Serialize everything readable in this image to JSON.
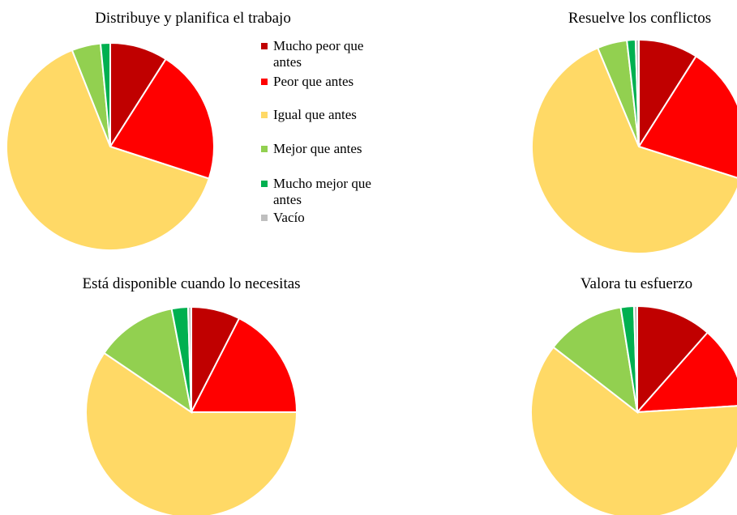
{
  "legend": [
    {
      "label": "Mucho peor que antes",
      "color": "#C00000"
    },
    {
      "label": "Peor que antes",
      "color": "#FF0000"
    },
    {
      "label": "Igual que antes",
      "color": "#FFD966"
    },
    {
      "label": "Mejor que antes",
      "color": "#92D050"
    },
    {
      "label": "Mucho mejor que antes",
      "color": "#00B050"
    },
    {
      "label": "Vacío",
      "color": "#BFBFBF"
    }
  ],
  "chart_data": [
    {
      "type": "pie",
      "title": "Distribuye y planifica el trabajo",
      "categories": [
        "Mucho peor que antes",
        "Peor que antes",
        "Igual que antes",
        "Mejor que antes",
        "Mucho mejor que antes",
        "Vacío"
      ],
      "values": [
        9,
        21,
        64,
        4.5,
        1.5,
        0
      ]
    },
    {
      "type": "pie",
      "title": "Resuelve los conflictos",
      "categories": [
        "Mucho peor que antes",
        "Peor que antes",
        "Igual que antes",
        "Mejor que antes",
        "Mucho mejor que antes",
        "Vacío"
      ],
      "values": [
        9,
        21,
        64,
        4.5,
        1.3,
        0.5
      ]
    },
    {
      "type": "pie",
      "title": "Está disponible cuando lo necesitas",
      "categories": [
        "Mucho peor que antes",
        "Peor que antes",
        "Igual que antes",
        "Mejor que antes",
        "Mucho mejor que antes",
        "Vacío"
      ],
      "values": [
        7.5,
        17.5,
        59.5,
        12.5,
        2.5,
        0.5
      ]
    },
    {
      "type": "pie",
      "title": "Valora tu esfuerzo",
      "categories": [
        "Mucho peor que antes",
        "Peor que antes",
        "Igual que antes",
        "Mejor que antes",
        "Mucho mejor que antes",
        "Vacío"
      ],
      "values": [
        11.5,
        12.5,
        61.5,
        12,
        2,
        0.5
      ]
    }
  ]
}
